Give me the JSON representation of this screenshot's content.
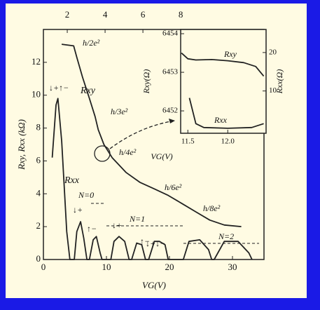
{
  "chart_data": [
    {
      "type": "line",
      "x_label": "VG(V)",
      "y_label": "Rxy, Rxx (kΩ)",
      "xlim": [
        0,
        35
      ],
      "xticks": [
        0,
        10,
        20,
        30
      ],
      "ylim": [
        0,
        14
      ],
      "yticks": [
        0,
        2,
        4,
        6,
        8,
        10,
        12
      ],
      "x2lim": [
        0.74,
        12.4
      ],
      "x2ticks": [
        2,
        4,
        6,
        8
      ],
      "grid": false,
      "series": [
        {
          "name": "Rxy",
          "color": "#222222",
          "x": [
            2.9,
            4.8,
            5.3,
            6.2,
            7.3,
            8.2,
            8.7,
            9.6,
            10.9,
            13.1,
            15.3,
            17.6,
            19.8,
            22.0,
            24.2,
            26.4,
            28.7,
            31.4
          ],
          "values": [
            13.1,
            13.0,
            12.3,
            11.1,
            9.8,
            8.7,
            7.9,
            7.0,
            6.2,
            5.3,
            4.7,
            4.3,
            3.9,
            3.4,
            2.9,
            2.4,
            2.1,
            2.0
          ]
        },
        {
          "name": "Rxx",
          "color": "#222222",
          "x": [
            1.4,
            2.0,
            2.3,
            2.9,
            3.7,
            4.2,
            4.9,
            5.3,
            5.9,
            6.4,
            6.9,
            7.3,
            7.9,
            8.4,
            9.0,
            9.3,
            10.7,
            11.2,
            12.0,
            12.9,
            13.6,
            14.0,
            14.8,
            15.6,
            16.2,
            16.7,
            17.6,
            18.4,
            19.3,
            19.8,
            22.2,
            23.1,
            24.8,
            26.2,
            26.7,
            27.1,
            28.7,
            30.9,
            32.6,
            33.1
          ],
          "values": [
            6.2,
            9.4,
            9.8,
            7.2,
            1.7,
            0,
            0,
            1.7,
            2.3,
            1.3,
            0,
            0,
            1.2,
            1.4,
            0.4,
            0,
            0,
            1.1,
            1.4,
            1.1,
            0,
            0,
            1.0,
            0.9,
            0,
            0,
            1.1,
            1.1,
            0.9,
            0,
            0,
            1.1,
            1.2,
            0.6,
            0,
            0,
            1.1,
            1.1,
            0.4,
            0
          ]
        }
      ],
      "annotations": [
        "h/2e²",
        "h/3e²",
        "h/4e²",
        "h/6e²",
        "h/8e²",
        "N=0",
        "N=1",
        "N=2",
        "↓+",
        "↑−",
        "↓+",
        "↑−",
        "↓+↑−",
        "↓+↓−"
      ]
    },
    {
      "type": "line",
      "x_label": "VG(V)",
      "y_label": "Rxy(Ω)",
      "y2_label": "Rxx(Ω)",
      "xlim": [
        11.41,
        12.48
      ],
      "xticks": [
        11.5,
        {
          "value": 12,
          "label": "12.0"
        }
      ],
      "ylim": [
        6451.42,
        6454.11
      ],
      "yticks": [
        6452,
        6453,
        6454
      ],
      "y2lim": [
        -1,
        26
      ],
      "y2ticks": [
        10,
        20
      ],
      "series": [
        {
          "name": "Rxy",
          "color": "#222222",
          "x": [
            11.42,
            11.5,
            11.6,
            11.8,
            12.0,
            12.2,
            12.35,
            12.45
          ],
          "values": [
            6453.5,
            6453.35,
            6453.32,
            6453.33,
            6453.3,
            6453.25,
            6453.15,
            6452.9
          ]
        },
        {
          "name": "Rxx",
          "color": "#222222",
          "axis": "y2",
          "x": [
            11.52,
            11.6,
            11.7,
            12.0,
            12.3,
            12.45
          ],
          "values": [
            8.2,
            1.5,
            0.5,
            0.3,
            0.5,
            1.5
          ]
        }
      ]
    }
  ]
}
